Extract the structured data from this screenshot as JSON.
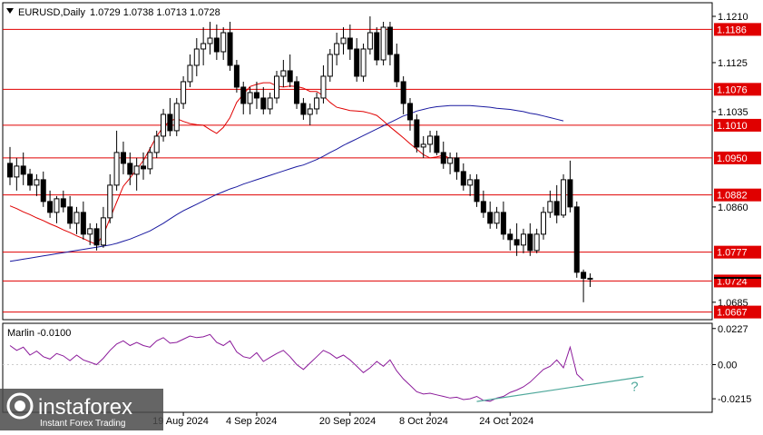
{
  "header": {
    "symbol": "EURUSD,Daily",
    "ohlc": "1.0729 1.0738 1.0713 1.0728"
  },
  "colors": {
    "background": "#ffffff",
    "axis": "#000000",
    "level_line": "#e00000",
    "ma_fast": "#e00000",
    "ma_slow": "#1a1aa0",
    "oscillator": "#8b1a9a",
    "trendline": "#4fa89b",
    "price_tag": "#e00000",
    "watermark_box": "#4a4a4a"
  },
  "chart_data": [
    {
      "type": "candlestick",
      "title": "EURUSD,Daily",
      "ylim": [
        1.0653,
        1.1235
      ],
      "y_ticks": [
        1.121,
        1.1125,
        1.1035,
        1.086,
        1.0685
      ],
      "x_tick_labels": [
        "19 Aug 2024",
        "4 Sep 2024",
        "20 Sep 2024",
        "8 Oct 2024",
        "24 Oct 2024"
      ],
      "levels": [
        1.1186,
        1.1076,
        1.101,
        1.095,
        1.0882,
        1.0777,
        1.0724,
        1.0667
      ],
      "current_price": 1.0728,
      "ohlc": [
        [
          1.094,
          1.097,
          1.09,
          1.0915
        ],
        [
          1.0915,
          1.095,
          1.089,
          1.0935
        ],
        [
          1.0935,
          1.096,
          1.09,
          1.092
        ],
        [
          1.092,
          1.093,
          1.089,
          1.09
        ],
        [
          1.09,
          1.092,
          1.088,
          1.091
        ],
        [
          1.091,
          1.0925,
          1.086,
          1.087
        ],
        [
          1.087,
          1.089,
          1.084,
          1.085
        ],
        [
          1.085,
          1.088,
          1.083,
          1.0875
        ],
        [
          1.0875,
          1.089,
          1.085,
          1.086
        ],
        [
          1.086,
          1.088,
          1.082,
          1.083
        ],
        [
          1.083,
          1.086,
          1.081,
          1.085
        ],
        [
          1.085,
          1.087,
          1.08,
          1.081
        ],
        [
          1.081,
          1.083,
          1.079,
          1.082
        ],
        [
          1.082,
          1.083,
          1.078,
          1.079
        ],
        [
          1.079,
          1.086,
          1.0785,
          1.084
        ],
        [
          1.084,
          1.092,
          1.083,
          1.09
        ],
        [
          1.09,
          1.1,
          1.089,
          1.096
        ],
        [
          1.096,
          1.098,
          1.092,
          1.094
        ],
        [
          1.094,
          1.096,
          1.09,
          1.092
        ],
        [
          1.092,
          1.095,
          1.089,
          1.0935
        ],
        [
          1.0935,
          1.096,
          1.091,
          1.093
        ],
        [
          1.093,
          1.097,
          1.092,
          1.096
        ],
        [
          1.096,
          1.1,
          1.095,
          1.099
        ],
        [
          1.099,
          1.104,
          1.098,
          1.103
        ],
        [
          1.103,
          1.106,
          1.099,
          1.1
        ],
        [
          1.1,
          1.106,
          1.099,
          1.105
        ],
        [
          1.105,
          1.11,
          1.104,
          1.109
        ],
        [
          1.109,
          1.114,
          1.108,
          1.112
        ],
        [
          1.112,
          1.117,
          1.11,
          1.115
        ],
        [
          1.115,
          1.119,
          1.112,
          1.116
        ],
        [
          1.116,
          1.12,
          1.114,
          1.117
        ],
        [
          1.117,
          1.1195,
          1.113,
          1.1145
        ],
        [
          1.1145,
          1.119,
          1.113,
          1.118
        ],
        [
          1.118,
          1.12,
          1.111,
          1.112
        ],
        [
          1.112,
          1.113,
          1.107,
          1.108
        ],
        [
          1.108,
          1.109,
          1.103,
          1.105
        ],
        [
          1.105,
          1.108,
          1.103,
          1.107
        ],
        [
          1.107,
          1.109,
          1.104,
          1.106
        ],
        [
          1.106,
          1.108,
          1.103,
          1.104
        ],
        [
          1.104,
          1.107,
          1.103,
          1.106
        ],
        [
          1.106,
          1.111,
          1.105,
          1.11
        ],
        [
          1.11,
          1.113,
          1.108,
          1.111
        ],
        [
          1.111,
          1.114,
          1.108,
          1.109
        ],
        [
          1.109,
          1.11,
          1.104,
          1.105
        ],
        [
          1.105,
          1.106,
          1.102,
          1.103
        ],
        [
          1.103,
          1.105,
          1.101,
          1.104
        ],
        [
          1.104,
          1.107,
          1.103,
          1.106
        ],
        [
          1.106,
          1.112,
          1.105,
          1.11
        ],
        [
          1.11,
          1.115,
          1.109,
          1.114
        ],
        [
          1.114,
          1.118,
          1.112,
          1.116
        ],
        [
          1.116,
          1.119,
          1.114,
          1.117
        ],
        [
          1.117,
          1.1195,
          1.113,
          1.115
        ],
        [
          1.115,
          1.117,
          1.109,
          1.11
        ],
        [
          1.11,
          1.116,
          1.109,
          1.115
        ],
        [
          1.115,
          1.121,
          1.114,
          1.118
        ],
        [
          1.118,
          1.119,
          1.112,
          1.113
        ],
        [
          1.113,
          1.12,
          1.112,
          1.119
        ],
        [
          1.119,
          1.12,
          1.112,
          1.114
        ],
        [
          1.114,
          1.116,
          1.108,
          1.109
        ],
        [
          1.109,
          1.11,
          1.103,
          1.105
        ],
        [
          1.105,
          1.106,
          1.1,
          1.102
        ],
        [
          1.102,
          1.103,
          1.096,
          1.097
        ],
        [
          1.097,
          1.099,
          1.095,
          1.0975
        ],
        [
          1.0975,
          1.1,
          1.096,
          1.099
        ],
        [
          1.099,
          1.1,
          1.0955,
          1.096
        ],
        [
          1.096,
          1.098,
          1.093,
          1.094
        ],
        [
          1.094,
          1.096,
          1.092,
          1.095
        ],
        [
          1.095,
          1.096,
          1.091,
          1.0925
        ],
        [
          1.0925,
          1.094,
          1.089,
          1.09
        ],
        [
          1.09,
          1.092,
          1.088,
          1.091
        ],
        [
          1.091,
          1.092,
          1.086,
          1.087
        ],
        [
          1.087,
          1.089,
          1.084,
          1.085
        ],
        [
          1.085,
          1.087,
          1.082,
          1.083
        ],
        [
          1.083,
          1.086,
          1.082,
          1.085
        ],
        [
          1.085,
          1.087,
          1.08,
          1.081
        ],
        [
          1.081,
          1.082,
          1.078,
          1.08
        ],
        [
          1.08,
          1.083,
          1.077,
          1.079
        ],
        [
          1.079,
          1.082,
          1.0775,
          1.081
        ],
        [
          1.081,
          1.083,
          1.077,
          1.078
        ],
        [
          1.078,
          1.082,
          1.0775,
          1.081
        ],
        [
          1.081,
          1.086,
          1.08,
          1.085
        ],
        [
          1.085,
          1.089,
          1.084,
          1.087
        ],
        [
          1.087,
          1.09,
          1.083,
          1.0845
        ],
        [
          1.0845,
          1.092,
          1.084,
          1.091
        ],
        [
          1.091,
          1.0945,
          1.085,
          1.086
        ],
        [
          1.086,
          1.087,
          1.073,
          1.074
        ],
        [
          1.074,
          1.0745,
          1.0685,
          1.0729
        ],
        [
          1.0729,
          1.0738,
          1.0713,
          1.0728
        ]
      ],
      "ma_fast": [
        1.0862,
        1.0857,
        1.0851,
        1.0846,
        1.084,
        1.0835,
        1.0829,
        1.0824,
        1.0818,
        1.0813,
        1.0807,
        1.0802,
        1.0796,
        1.0791,
        1.0809,
        1.0839,
        1.0869,
        1.0898,
        1.0913,
        1.0929,
        1.0945,
        1.0967,
        1.099,
        1.1007,
        1.1018,
        1.1022,
        1.1017,
        1.1013,
        1.1011,
        1.101,
        1.1002,
        1.0995,
        1.1006,
        1.1024,
        1.1052,
        1.1067,
        1.1081,
        1.1085,
        1.1088,
        1.1088,
        1.1082,
        1.108,
        1.1082,
        1.1081,
        1.1078,
        1.1072,
        1.1072,
        1.1064,
        1.1052,
        1.1043,
        1.104,
        1.1037,
        1.1036,
        1.1035,
        1.1032,
        1.1028,
        1.1018,
        1.1007,
        1.0997,
        1.0987,
        1.0976,
        1.0966,
        1.0956,
        1.095,
        1.0952,
        1.0955,
        1.0949
      ],
      "ma_fast_start": 0,
      "ma_slow": [
        1.076,
        1.0762,
        1.0764,
        1.0766,
        1.0768,
        1.077,
        1.0772,
        1.0774,
        1.0776,
        1.0778,
        1.078,
        1.0782,
        1.0784,
        1.0786,
        1.0788,
        1.079,
        1.0793,
        1.0797,
        1.0801,
        1.0806,
        1.0811,
        1.0816,
        1.0823,
        1.083,
        1.0838,
        1.0846,
        1.0853,
        1.0859,
        1.0865,
        1.0871,
        1.0877,
        1.0883,
        1.0888,
        1.0893,
        1.0897,
        1.0902,
        1.0906,
        1.091,
        1.0914,
        1.0918,
        1.0922,
        1.0926,
        1.093,
        1.0934,
        1.0937,
        1.0942,
        1.0947,
        1.0953,
        1.096,
        1.0966,
        1.0973,
        1.0979,
        1.0985,
        1.0991,
        1.0997,
        1.1003,
        1.1009,
        1.1015,
        1.1021,
        1.1027,
        1.1031,
        1.1036,
        1.1039,
        1.1042,
        1.1044,
        1.1045,
        1.1046,
        1.1046,
        1.1046,
        1.1046,
        1.1045,
        1.1044,
        1.1043,
        1.1041,
        1.104,
        1.1039,
        1.1037,
        1.1035,
        1.1032,
        1.103,
        1.1027,
        1.1024,
        1.1021,
        1.1018
      ],
      "ma_slow_start": 0
    },
    {
      "type": "line",
      "title": "Marlin -0.0100",
      "ylim": [
        -0.03,
        0.026
      ],
      "y_ticks": [
        0.0227,
        0.0,
        -0.0215
      ],
      "series": [
        {
          "values": [
            0.012,
            0.009,
            0.011,
            0.006,
            0.0085,
            0.005,
            0.0035,
            0.007,
            0.0055,
            0.0025,
            0.006,
            0.003,
            0.0015,
            0.0,
            0.004,
            0.009,
            0.013,
            0.015,
            0.012,
            0.014,
            0.012,
            0.011,
            0.015,
            0.017,
            0.0135,
            0.014,
            0.016,
            0.018,
            0.017,
            0.0175,
            0.019,
            0.014,
            0.012,
            0.015,
            0.008,
            0.005,
            0.004,
            0.0075,
            0.002,
            0.0045,
            0.007,
            0.009,
            0.005,
            0.0,
            -0.003,
            0.001,
            0.005,
            0.009,
            0.007,
            0.004,
            0.006,
            0.003,
            -0.001,
            -0.005,
            -0.002,
            0.002,
            -0.001,
            0.003,
            -0.004,
            -0.009,
            -0.013,
            -0.017,
            -0.0185,
            -0.018,
            -0.019,
            -0.02,
            -0.021,
            -0.0205,
            -0.022,
            -0.0215,
            -0.02,
            -0.0225,
            -0.023,
            -0.021,
            -0.02,
            -0.0175,
            -0.016,
            -0.014,
            -0.011,
            -0.007,
            -0.003,
            -0.001,
            0.003,
            -0.002,
            0.011,
            -0.006,
            -0.01
          ]
        }
      ],
      "trendline": [
        [
          -0.0232,
          70
        ],
        [
          -0.0075,
          95
        ]
      ],
      "annotation": "?"
    }
  ],
  "watermark": {
    "brand": "instaforex",
    "tagline": "Instant Forex Trading"
  }
}
